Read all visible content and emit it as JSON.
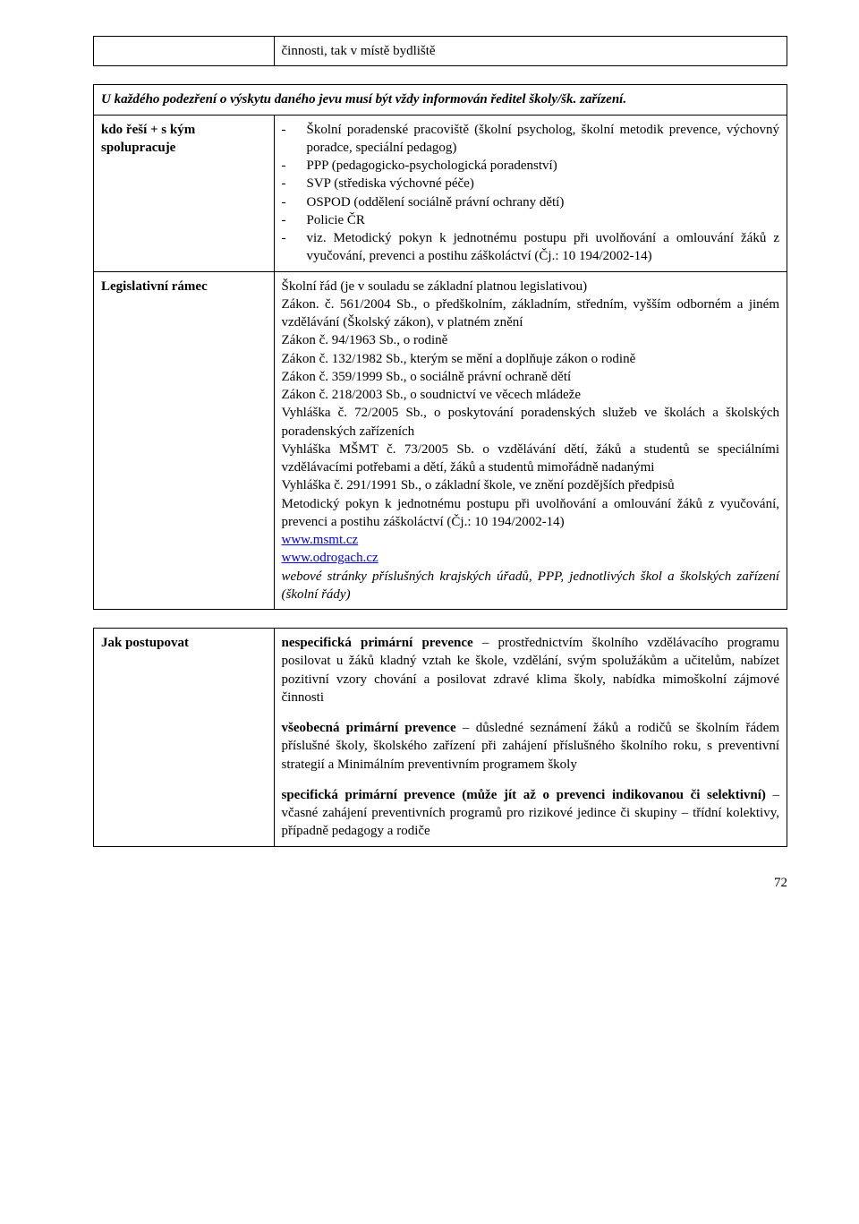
{
  "row_top": {
    "label": "",
    "content": "činnosti, tak v místě bydliště"
  },
  "intro": "U každého podezření o výskytu daného jevu musí být vždy informován ředitel školy/šk. zařízení.",
  "row_kdo": {
    "label": "kdo řeší + s kým spolupracuje",
    "items": [
      "Školní poradenské pracoviště (školní psycholog, školní metodik prevence, výchovný poradce, speciální pedagog)",
      "PPP (pedagogicko-psychologická poradenství)",
      "SVP (střediska výchovné péče)",
      "OSPOD (oddělení sociálně právní ochrany dětí)",
      "Policie ČR",
      "viz. Metodický pokyn k jednotnému postupu při uvolňování a omlouvání žáků z vyučování, prevenci a postihu záškoláctví (Čj.: 10 194/2002-14)"
    ]
  },
  "row_leg": {
    "label": "Legislativní rámec",
    "p1": "Školní řád (je v souladu se základní platnou legislativou)",
    "p2": "Zákon. č. 561/2004 Sb., o předškolním, základním, středním, vyšším odborném a jiném vzdělávání (Školský zákon), v platném znění",
    "p3": "Zákon č. 94/1963 Sb.,  o rodině",
    "p4": "Zákon č. 132/1982 Sb., kterým se mění a doplňuje zákon o rodině",
    "p5": "Zákon č. 359/1999 Sb., o sociálně právní ochraně dětí",
    "p6": "Zákon č. 218/2003 Sb., o soudnictví ve věcech mládeže",
    "p7": "Vyhláška č. 72/2005 Sb., o poskytování poradenských služeb ve školách a školských poradenských zařízeních",
    "p8": "Vyhláška MŠMT č. 73/2005 Sb. o vzdělávání dětí, žáků a studentů se speciálními vzdělávacími potřebami a dětí, žáků a studentů mimořádně nadanými",
    "p9": "Vyhláška č. 291/1991 Sb., o základní škole, ve znění pozdějších předpisů",
    "p10": "Metodický pokyn k jednotnému postupu při uvolňování a omlouvání žáků z vyučování, prevenci a postihu záškoláctví (Čj.: 10 194/2002-14)",
    "link1": "www.msmt.cz",
    "link2": "www.odrogach.cz",
    "p11": "webové stránky příslušných krajských úřadů, PPP, jednotlivých škol a školských zařízení (školní řády)"
  },
  "row_jak": {
    "label": "Jak postupovat",
    "para1_lead": "nespecifická primární prevence",
    "para1_rest": " – prostřednictvím školního vzdělávacího programu posilovat u žáků kladný vztah ke škole, vzdělání, svým spolužákům a učitelům, nabízet pozitivní vzory chování a posilovat zdravé klima školy, nabídka mimoškolní zájmové činnosti",
    "para2_lead": "všeobecná primární prevence",
    "para2_rest": " – důsledné seznámení žáků a rodičů se školním řádem příslušné školy, školského zařízení při zahájení příslušného školního roku, s preventivní strategií a Minimálním preventivním programem školy",
    "para3_lead": "specifická primární prevence (může jít až o prevenci indikovanou či selektivní)",
    "para3_rest": " – včasné zahájení preventivních programů pro rizikové jedince či skupiny – třídní kolektivy, případně pedagogy a rodiče"
  },
  "page_number": "72"
}
